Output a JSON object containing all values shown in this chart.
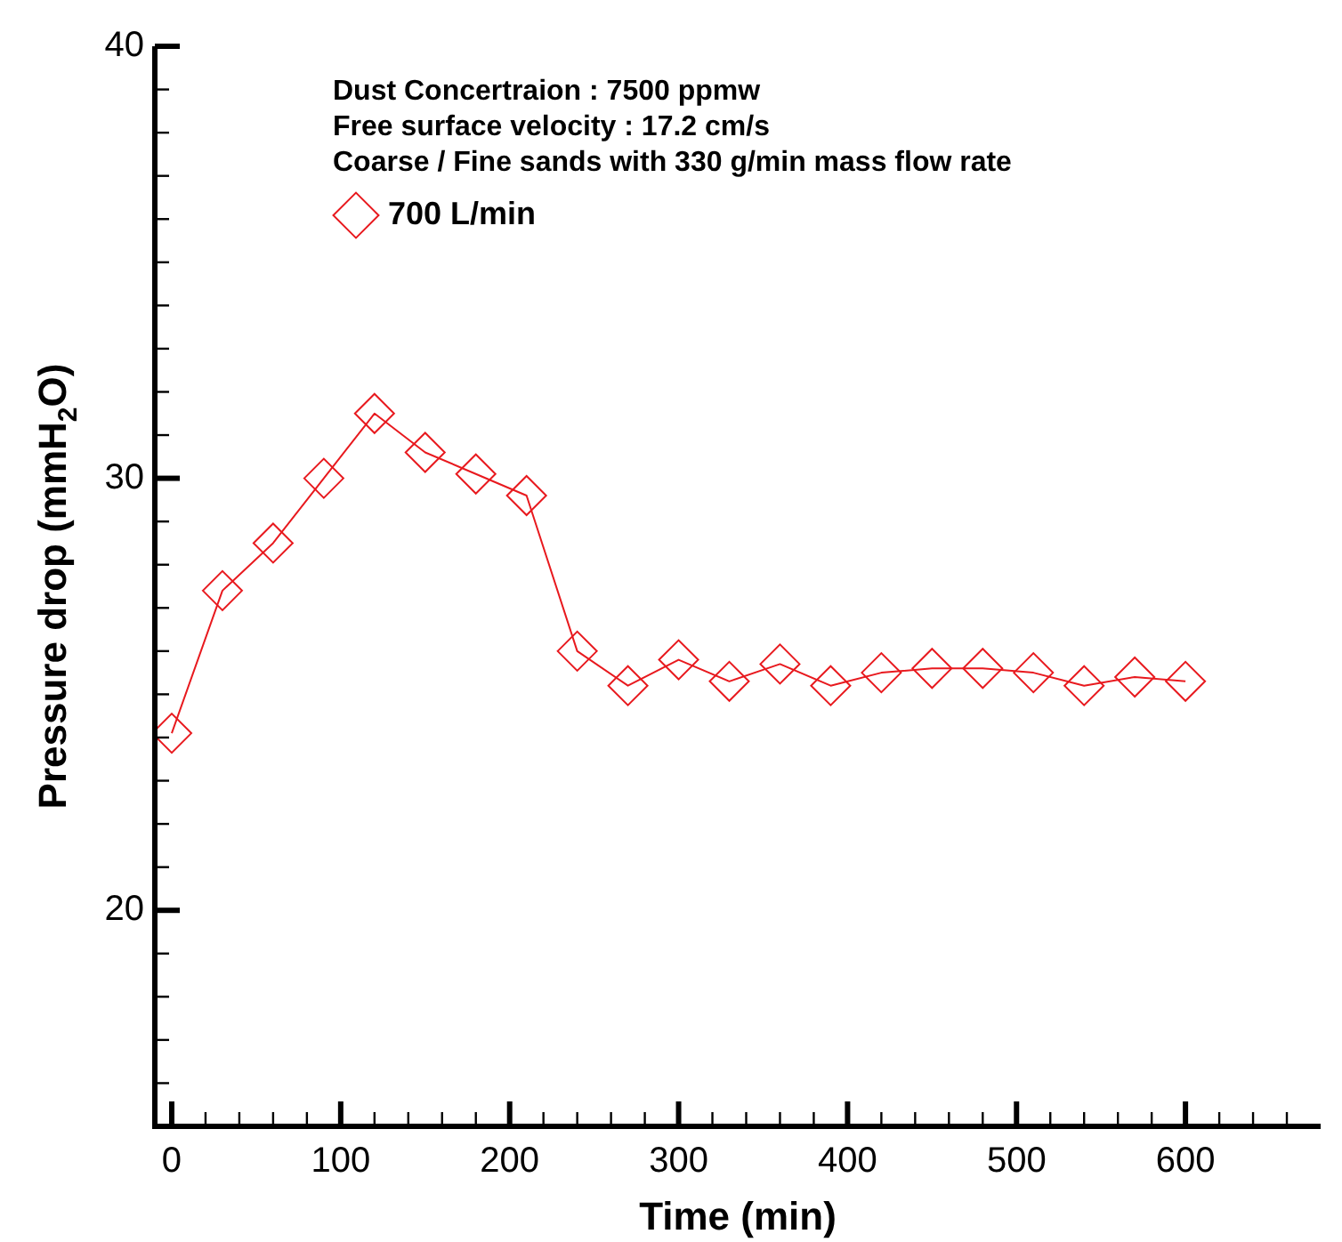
{
  "chart_data": {
    "type": "line",
    "xlabel": "Time (min)",
    "ylabel": "Pressure drop (mmH$_{2}$O)",
    "annotations": [
      "Dust Concertraion : 7500 ppmw",
      "Free surface velocity : 17.2 cm/s",
      "Coarse / Fine sands with 330 g/min mass flow rate"
    ],
    "x": [
      0,
      30,
      60,
      90,
      120,
      150,
      180,
      210,
      240,
      270,
      300,
      330,
      360,
      390,
      420,
      450,
      480,
      510,
      540,
      570,
      600
    ],
    "series": [
      {
        "name": "700 L/min",
        "color": "#e8191e",
        "values": [
          24.1,
          27.4,
          28.5,
          30.0,
          31.5,
          30.6,
          30.1,
          29.6,
          26.0,
          25.2,
          25.8,
          25.3,
          25.7,
          25.2,
          25.5,
          25.6,
          25.6,
          25.5,
          25.2,
          25.4,
          25.3
        ]
      }
    ],
    "xlim": [
      -10,
      680
    ],
    "ylim": [
      15,
      40
    ],
    "xticks": [
      0,
      {
        "value": 20,
        "label": null
      },
      {
        "value": 40,
        "label": null
      },
      {
        "value": 60,
        "label": null
      },
      {
        "value": 80,
        "label": null
      },
      100,
      {
        "value": 120,
        "label": null
      },
      {
        "value": 140,
        "label": null
      },
      {
        "value": 160,
        "label": null
      },
      {
        "value": 180,
        "label": null
      },
      200,
      {
        "value": 220,
        "label": null
      },
      {
        "value": 240,
        "label": null
      },
      {
        "value": 260,
        "label": null
      },
      {
        "value": 280,
        "label": null
      },
      300,
      {
        "value": 320,
        "label": null
      },
      {
        "value": 340,
        "label": null
      },
      {
        "value": 360,
        "label": null
      },
      {
        "value": 380,
        "label": null
      },
      400,
      {
        "value": 420,
        "label": null
      },
      {
        "value": 440,
        "label": null
      },
      {
        "value": 460,
        "label": null
      },
      {
        "value": 480,
        "label": null
      },
      500,
      {
        "value": 520,
        "label": null
      },
      {
        "value": 540,
        "label": null
      },
      {
        "value": 560,
        "label": null
      },
      {
        "value": 580,
        "label": null
      },
      600,
      {
        "value": 620,
        "label": null
      },
      {
        "value": 640,
        "label": null
      },
      {
        "value": 660,
        "label": null
      }
    ],
    "yticks": [
      {
        "value": 16,
        "label": null
      },
      {
        "value": 17,
        "label": null
      },
      {
        "value": 18,
        "label": null
      },
      {
        "value": 19,
        "label": null
      },
      20,
      {
        "value": 21,
        "label": null
      },
      {
        "value": 22,
        "label": null
      },
      {
        "value": 23,
        "label": null
      },
      {
        "value": 24,
        "label": null
      },
      {
        "value": 25,
        "label": null
      },
      {
        "value": 26,
        "label": null
      },
      {
        "value": 27,
        "label": null
      },
      {
        "value": 28,
        "label": null
      },
      {
        "value": 29,
        "label": null
      },
      30,
      {
        "value": 31,
        "label": null
      },
      {
        "value": 32,
        "label": null
      },
      {
        "value": 33,
        "label": null
      },
      {
        "value": 34,
        "label": null
      },
      {
        "value": 35,
        "label": null
      },
      {
        "value": 36,
        "label": null
      },
      {
        "value": 37,
        "label": null
      },
      {
        "value": 38,
        "label": null
      },
      {
        "value": 39,
        "label": null
      },
      40
    ],
    "legend": "top left",
    "marker": "diamond",
    "line_style": "solid",
    "grid": false
  }
}
